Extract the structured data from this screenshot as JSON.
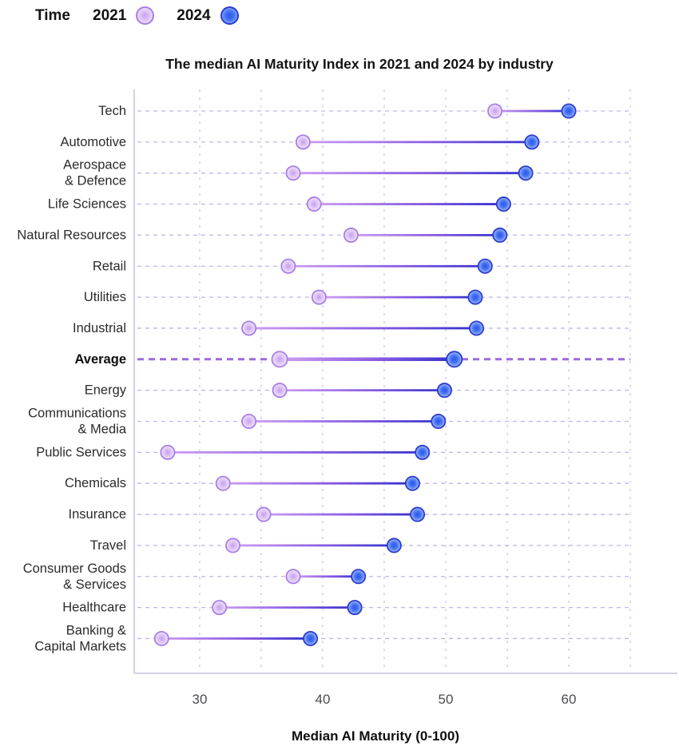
{
  "legend": {
    "title": "Time",
    "items": [
      {
        "label": "2021",
        "swatch_icon": "dot-2021"
      },
      {
        "label": "2024",
        "swatch_icon": "dot-2024"
      }
    ]
  },
  "chart_data": {
    "type": "dumbbell",
    "title": "The median AI Maturity Index in 2021 and 2024 by industry",
    "xlabel": "Median AI Maturity (0-100)",
    "categories": [
      "Tech",
      "Automotive",
      "Aerospace & Defence",
      "Life Sciences",
      "Natural Resources",
      "Retail",
      "Utilities",
      "Industrial",
      "Average",
      "Energy",
      "Communications & Media",
      "Public Services",
      "Chemicals",
      "Insurance",
      "Travel",
      "Consumer Goods & Services",
      "Healthcare",
      "Banking & Capital Markets"
    ],
    "category_lines": [
      [
        "Tech"
      ],
      [
        "Automotive"
      ],
      [
        "Aerospace",
        "& Defence"
      ],
      [
        "Life Sciences"
      ],
      [
        "Natural Resources"
      ],
      [
        "Retail"
      ],
      [
        "Utilities"
      ],
      [
        "Industrial"
      ],
      [
        "Average"
      ],
      [
        "Energy"
      ],
      [
        "Communications",
        "& Media"
      ],
      [
        "Public Services"
      ],
      [
        "Chemicals"
      ],
      [
        "Insurance"
      ],
      [
        "Travel"
      ],
      [
        "Consumer Goods",
        "& Services"
      ],
      [
        "Healthcare"
      ],
      [
        "Banking &",
        "Capital Markets"
      ]
    ],
    "bold_category": "Average",
    "series": [
      {
        "name": "2021",
        "values": [
          54,
          38.4,
          37.6,
          39.3,
          42.3,
          37.2,
          39.7,
          34,
          36.5,
          36.5,
          34,
          27.4,
          31.9,
          35.2,
          32.7,
          37.6,
          31.6,
          26.9
        ]
      },
      {
        "name": "2024",
        "values": [
          60,
          57,
          56.5,
          54.7,
          54.4,
          53.2,
          52.4,
          52.5,
          50.7,
          49.9,
          49.4,
          48.1,
          47.3,
          47.7,
          45.8,
          42.9,
          42.6,
          39
        ]
      }
    ],
    "xticks": [
      30,
      40,
      50,
      60
    ],
    "gridlines": [
      30,
      35,
      40,
      45,
      50,
      55,
      60,
      65
    ],
    "xlim": [
      24.7,
      68.8
    ],
    "grid": true,
    "legend_position": "top-left",
    "colors": {
      "dot_2021_border": "#a77ee6",
      "dot_2021_center": "#c79ff0",
      "dot_2021_mid": "#dcc2f6",
      "dot_2021_edge": "#f0e7fb",
      "dot_2024_border": "#2c3bcf",
      "dot_2024_center": "#2a55ee",
      "dot_2024_mid": "#4a77f3",
      "dot_2024_edge": "#a6bef8",
      "connector_start": "#cf9ef2",
      "connector_mid": "#8a5ce2",
      "connector_end": "#3431ce",
      "row_guide": "#c3b2ea",
      "average_guide": "#9c6add",
      "gridline": "#ccc5ef",
      "axis": "#c6c2d9",
      "label_text": "#2b2b2b",
      "tick_text": "#4c4c50"
    }
  }
}
